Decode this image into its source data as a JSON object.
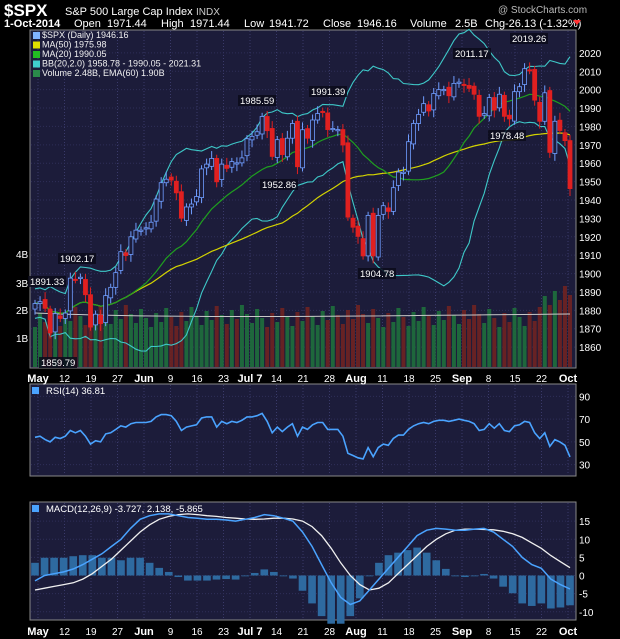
{
  "header": {
    "symbol": "$SPX",
    "name": "S&P 500 Large Cap Index",
    "exchange": "INDX",
    "watermark": "@ StockCharts.com",
    "date": "1-Oct-2014",
    "open_label": "Open",
    "open": "1971.44",
    "high_label": "High",
    "high": "1971.44",
    "low_label": "Low",
    "low": "1941.72",
    "close_label": "Close",
    "close": "1946.16",
    "volume_label": "Volume",
    "volume": "2.5B",
    "chg_label": "Chg",
    "chg": "-26.13 (-1.32%)"
  },
  "price_legend": [
    {
      "text": "$SPX (Daily) 1946.16",
      "color": "#7fb2ff"
    },
    {
      "text": "MA(50) 1975.98",
      "color": "#e0e000"
    },
    {
      "text": "MA(20) 1990.05",
      "color": "#22bb22"
    },
    {
      "text": "BB(20,2.0) 1958.78 - 1990.05 - 2021.31",
      "color": "#40d0d0"
    },
    {
      "text": "Volume 2.48B, EMA(60) 1.90B",
      "color": "#2a8a4a"
    }
  ],
  "x_labels": [
    "May",
    "12",
    "19",
    "27",
    "Jun",
    "9",
    "16",
    "23",
    "Jul 7",
    "14",
    "21",
    "28",
    "Aug",
    "11",
    "18",
    "25",
    "Sep",
    "8",
    "15",
    "22",
    "Oct"
  ],
  "bold_x_labels": [
    "May",
    "Jun",
    "Jul 7",
    "Aug",
    "Sep",
    "Oct"
  ],
  "volume_axis": [
    "4B",
    "3B",
    "2B",
    "1B"
  ],
  "chart_data": [
    {
      "type": "candlestick",
      "title": "$SPX S&P 500 Large Cap Index",
      "series_name": "$SPX (Daily)",
      "ylim": [
        1850,
        2030
      ],
      "yticks": [
        1860,
        1870,
        1880,
        1890,
        1900,
        1910,
        1920,
        1930,
        1940,
        1950,
        1960,
        1970,
        1980,
        1990,
        2000,
        2010,
        2020
      ],
      "close": [
        1883.7,
        1884.7,
        1881.1,
        1867.7,
        1878.2,
        1875.6,
        1878.5,
        1897.5,
        1896.7,
        1898.0,
        1888.5,
        1870.9,
        1877.9,
        1872.8,
        1888.0,
        1892.5,
        1900.5,
        1911.9,
        1909.8,
        1920.0,
        1923.6,
        1923.6,
        1924.9,
        1927.9,
        1940.5,
        1949.4,
        1951.3,
        1950.8,
        1943.9,
        1930.1,
        1936.2,
        1937.8,
        1941.9,
        1956.9,
        1959.5,
        1962.6,
        1949.9,
        1959.5,
        1957.2,
        1960.9,
        1960.2,
        1962.9,
        1973.3,
        1974.6,
        1977.1,
        1985.4,
        1977.7,
        1963.7,
        1972.8,
        1964.7,
        1973.6,
        1981.6,
        1958.1,
        1978.2,
        1973.6,
        1983.5,
        1987.0,
        1987.9,
        1978.3,
        1978.9,
        1978.3,
        1969.9,
        1930.7,
        1925.2,
        1920.2,
        1909.6,
        1931.6,
        1909.6,
        1931.6,
        1936.9,
        1933.8,
        1946.7,
        1955.2,
        1955.1,
        1971.7,
        1981.6,
        1986.5,
        1992.4,
        1988.4,
        1997.9,
        2000.0,
        2000.1,
        1996.7,
        2003.4,
        2004.1,
        2002.3,
        2000.7,
        1997.5,
        1985.5,
        1987.0,
        1995.7,
        1988.9,
        1997.5,
        1985.5,
        1984.1,
        1998.9,
        2001.6,
        2011.4,
        2010.4,
        1994.3,
        1982.8,
        1998.3,
        1965.9,
        1982.8,
        1977.8,
        1972.3,
        1946.2
      ],
      "annotations": [
        {
          "label": "1891.33",
          "value": 1891.33
        },
        {
          "label": "1902.17",
          "value": 1902.17
        },
        {
          "label": "1859.79",
          "value": 1859.79
        },
        {
          "label": "1985.59",
          "value": 1985.59
        },
        {
          "label": "1991.39",
          "value": 1991.39
        },
        {
          "label": "1952.86",
          "value": 1952.86
        },
        {
          "label": "1904.78",
          "value": 1904.78
        },
        {
          "label": "2011.17",
          "value": 2011.17
        },
        {
          "label": "2019.26",
          "value": 2019.26
        },
        {
          "label": "1978.48",
          "value": 1978.48
        }
      ],
      "overlays": [
        "MA(50)",
        "MA(20)",
        "BB(20,2.0)",
        "Volume",
        "EMA(60)"
      ]
    },
    {
      "type": "line",
      "title": "RSI(14) 36.81",
      "series_name": "RSI(14)",
      "ylim": [
        20,
        100
      ],
      "yticks": [
        30,
        50,
        70,
        90
      ],
      "values": [
        54,
        55,
        52,
        50,
        54,
        53,
        55,
        60,
        58,
        60,
        55,
        48,
        51,
        50,
        57,
        58,
        61,
        64,
        63,
        66,
        67,
        67,
        67,
        68,
        72,
        74,
        74,
        73,
        68,
        60,
        63,
        64,
        65,
        71,
        72,
        72,
        63,
        68,
        66,
        68,
        67,
        69,
        72,
        72,
        73,
        75,
        68,
        58,
        63,
        59,
        63,
        66,
        55,
        63,
        61,
        65,
        67,
        67,
        61,
        61,
        61,
        55,
        40,
        38,
        36,
        35,
        45,
        37,
        45,
        48,
        47,
        53,
        56,
        56,
        61,
        64,
        66,
        67,
        66,
        68,
        69,
        69,
        68,
        69,
        70,
        69,
        68,
        66,
        60,
        61,
        66,
        62,
        66,
        60,
        59,
        64,
        65,
        68,
        67,
        58,
        53,
        58,
        46,
        52,
        50,
        47,
        36.81
      ]
    },
    {
      "type": "line",
      "title": "MACD(12,26,9) -3.727, 2.138, -5.865",
      "series": [
        {
          "name": "MACD(12,26,9)",
          "values": [
            -1.5,
            0,
            0.5,
            1,
            1.8,
            3,
            4.5,
            6,
            8,
            10,
            13,
            15.5,
            16.5,
            17,
            17,
            16.5,
            16,
            15.8,
            15.5,
            15.5,
            15.3,
            15,
            15.5,
            16,
            16.8,
            16.5,
            15.8,
            15,
            12,
            8,
            3,
            -2,
            -6,
            -8,
            -7,
            -4,
            -1,
            2,
            5,
            8,
            11,
            12.5,
            13,
            12.8,
            12.5,
            12.5,
            12.8,
            13,
            12,
            10,
            8,
            5,
            3,
            2,
            -1,
            -2.5,
            -3.727
          ]
        },
        {
          "name": "signal",
          "values": [
            -4,
            -3.5,
            -3,
            -2.5,
            -2,
            -1,
            0.5,
            2.5,
            4.5,
            7,
            9.5,
            12,
            14,
            15.5,
            16.3,
            16.8,
            17,
            16.8,
            16.5,
            16.3,
            16,
            15.8,
            15.6,
            15.5,
            15.6,
            15.8,
            15.8,
            15.6,
            15,
            13.5,
            11,
            7.5,
            3.5,
            0,
            -2.5,
            -4,
            -3.5,
            -2,
            0.5,
            3,
            5.5,
            8,
            10,
            11.5,
            12.5,
            12.8,
            12.8,
            12.7,
            12.6,
            12.2,
            11.5,
            10.5,
            9,
            7.5,
            5.5,
            3.8,
            2.138
          ]
        }
      ],
      "histogram_final": -5.865,
      "ylim": [
        -12,
        20
      ],
      "yticks": [
        -10,
        -5,
        0,
        5,
        10,
        15
      ]
    }
  ]
}
